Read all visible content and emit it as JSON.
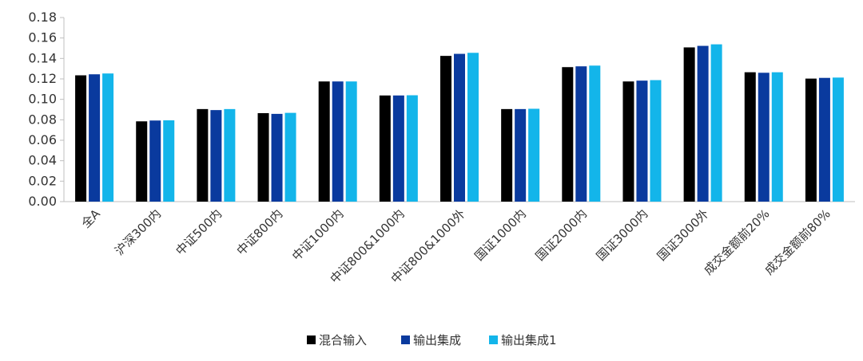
{
  "chart_data": {
    "type": "bar",
    "categories": [
      "全A",
      "沪深300内",
      "中证500内",
      "中证800内",
      "中证1000内",
      "中证800&1000内",
      "中证800&1000外",
      "国证1000内",
      "国证2000内",
      "国证3000内",
      "国证3000外",
      "成交金额前20%",
      "成交金额前80%"
    ],
    "series": [
      {
        "name": "混合输入",
        "color": "#000000",
        "values": [
          0.1235,
          0.0785,
          0.0905,
          0.0865,
          0.1175,
          0.1038,
          0.1425,
          0.0905,
          0.1315,
          0.1175,
          0.1508,
          0.1265,
          0.1203
        ]
      },
      {
        "name": "输出集成",
        "color": "#0a3a9e",
        "values": [
          0.1245,
          0.0793,
          0.0895,
          0.0858,
          0.1175,
          0.1038,
          0.1445,
          0.0905,
          0.1323,
          0.1183,
          0.1523,
          0.126,
          0.121
        ]
      },
      {
        "name": "输出集成1",
        "color": "#13b5ea",
        "values": [
          0.1253,
          0.0795,
          0.0905,
          0.0868,
          0.1175,
          0.104,
          0.1455,
          0.0908,
          0.133,
          0.1188,
          0.1538,
          0.1265,
          0.1213
        ]
      }
    ],
    "y_ticks": [
      "0.00",
      "0.02",
      "0.04",
      "0.06",
      "0.08",
      "0.10",
      "0.12",
      "0.14",
      "0.16",
      "0.18"
    ],
    "ylim": [
      0,
      0.18
    ],
    "grid": false,
    "legend_position": "bottom-center",
    "title": "",
    "xlabel": "",
    "ylabel": ""
  }
}
